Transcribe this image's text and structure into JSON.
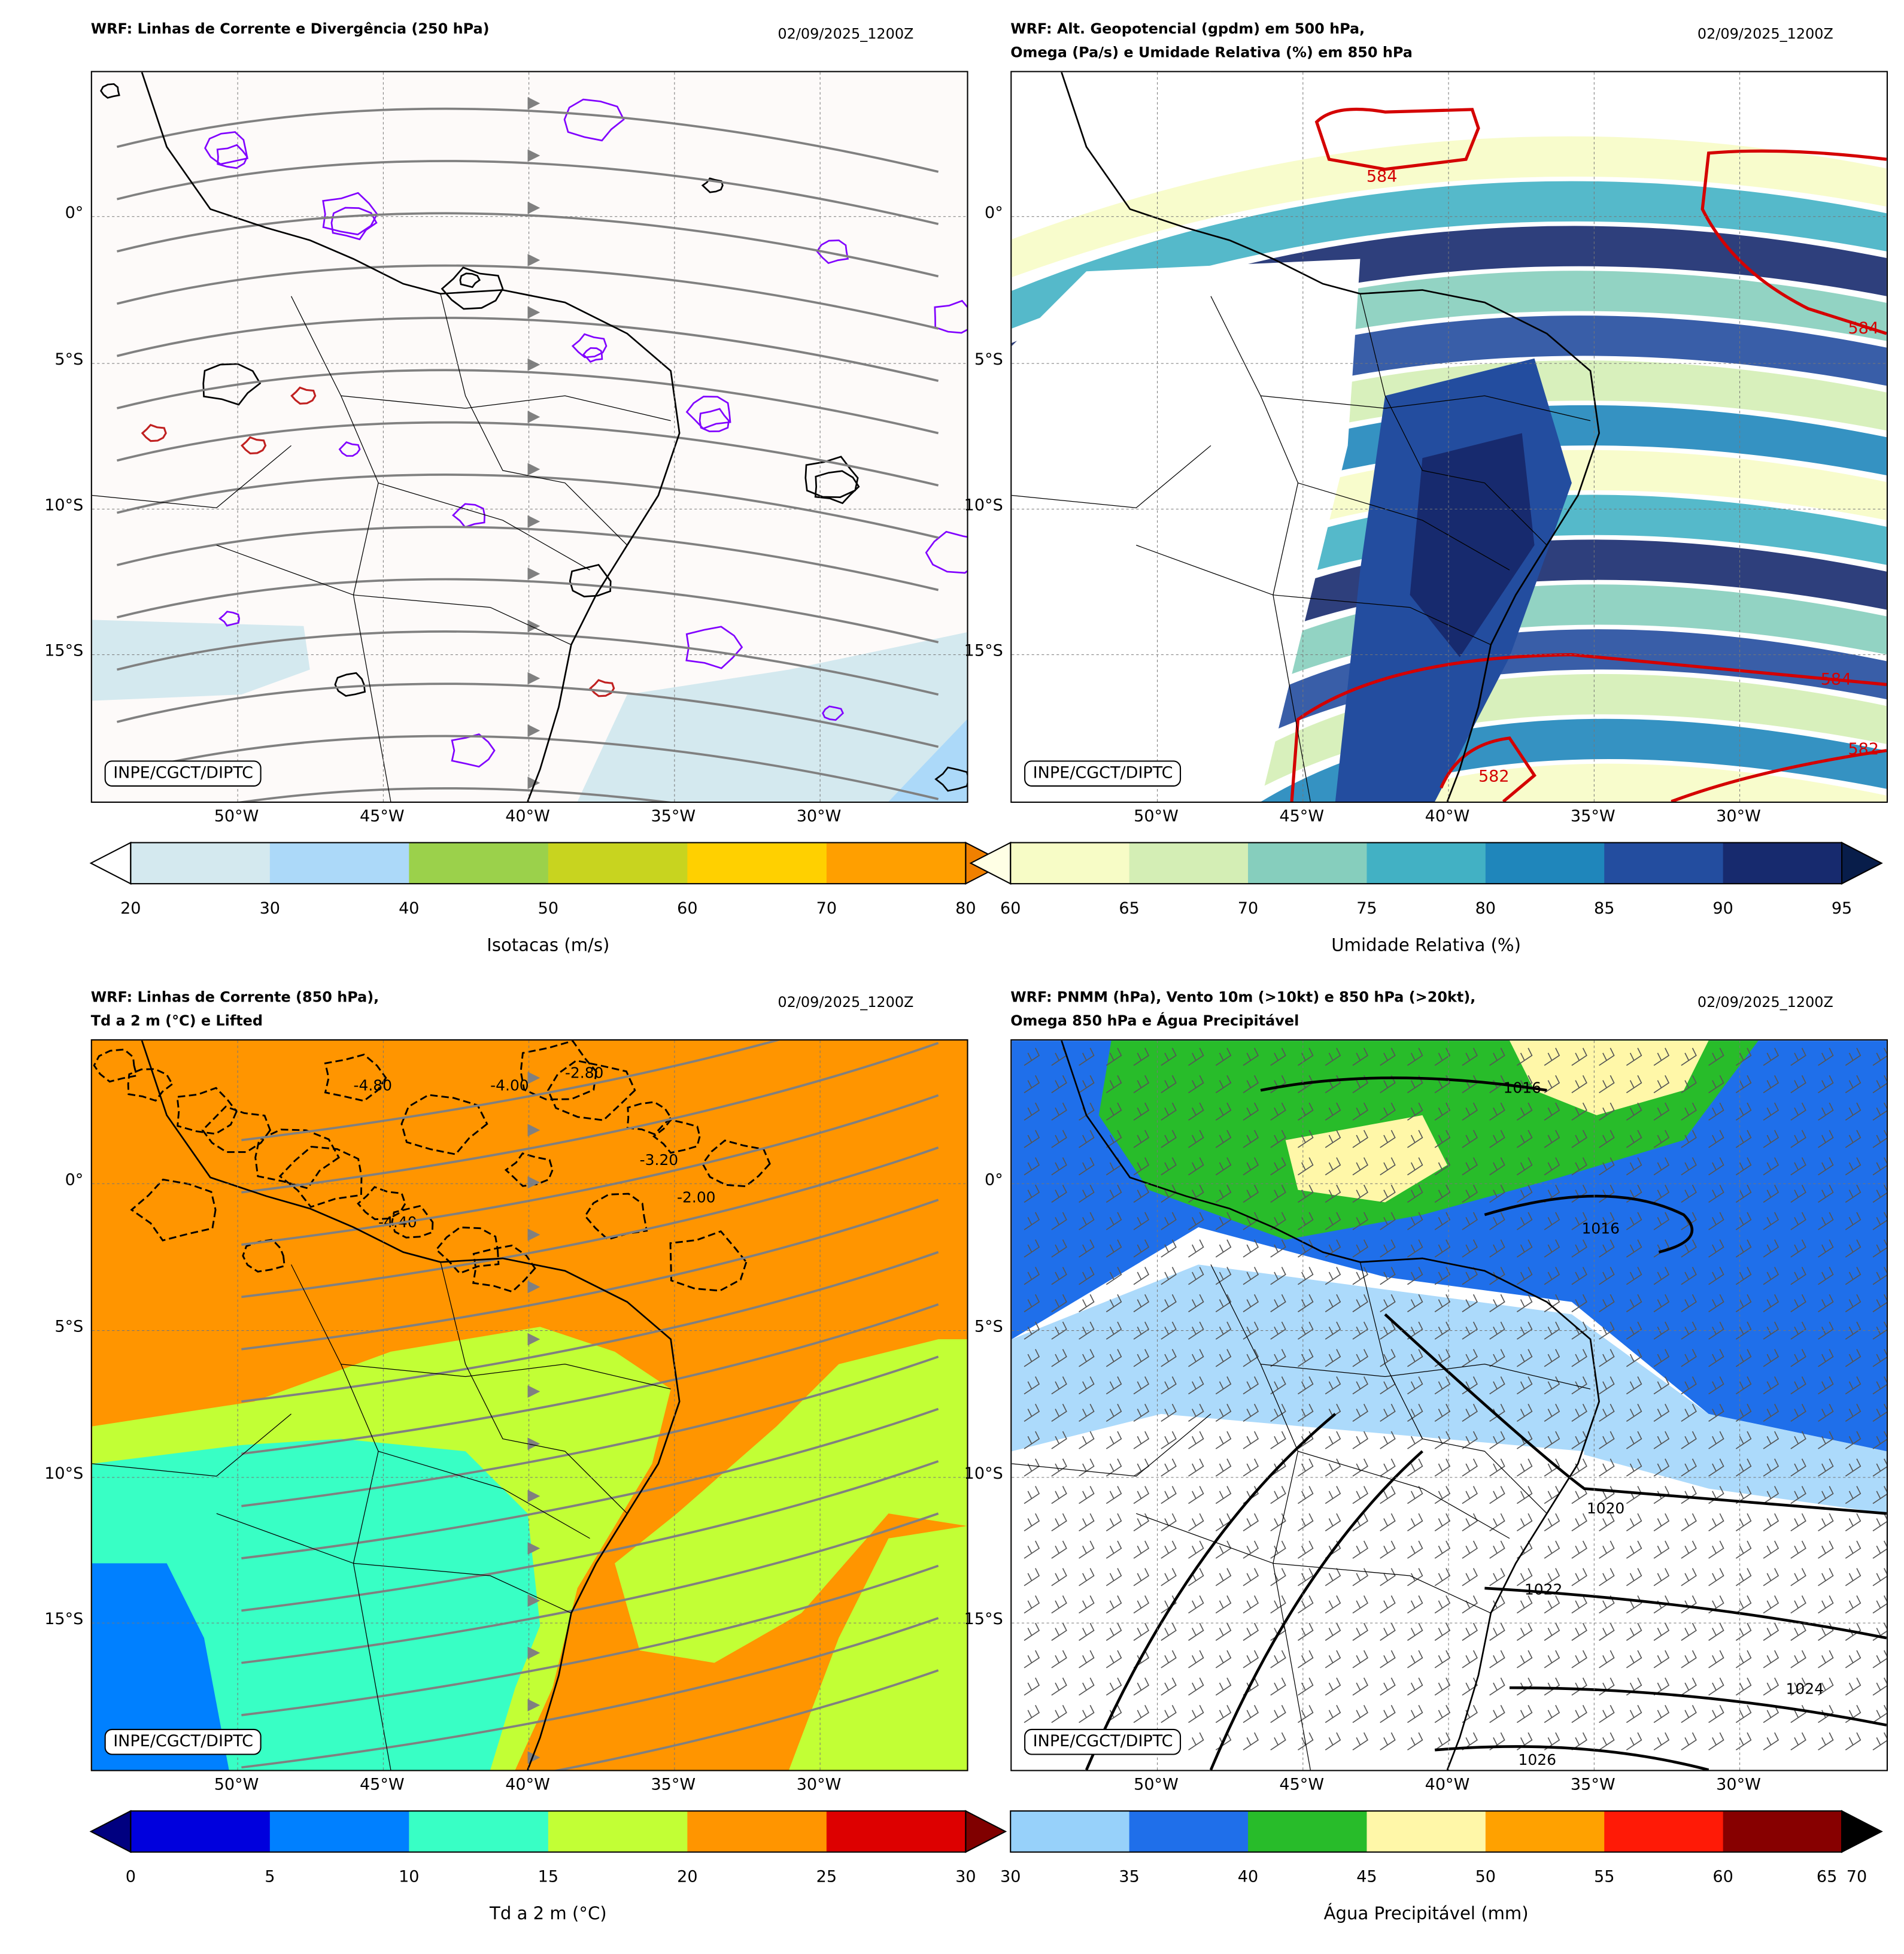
{
  "panels": [
    {
      "title_line1": "WRF: Linhas de Corrente e Divergência (250 hPa)",
      "title_line2": "",
      "date": "02/09/2025_1200Z",
      "badge": "INPE/CGCT/DIPTC",
      "colorbar": {
        "label": "Isotacas (m/s)",
        "ticks": [
          "20",
          "30",
          "40",
          "50",
          "60",
          "70",
          "80"
        ],
        "colors": [
          "#d4e9ef",
          "#acd9f9",
          "#9bd14b",
          "#c8d41f",
          "#ffd000",
          "#ff9f00"
        ],
        "extend_min": "#ffffff",
        "extend_max": "#f08000"
      }
    },
    {
      "title_line1": "WRF: Alt. Geopotencial (gpdm) em 500 hPa,",
      "title_line2": "Omega (Pa/s) e Umidade Relativa (%) em 850 hPa",
      "date": "02/09/2025_1200Z",
      "badge": "INPE/CGCT/DIPTC",
      "colorbar": {
        "label": "Umidade Relativa (%)",
        "ticks": [
          "60",
          "65",
          "70",
          "75",
          "80",
          "85",
          "90",
          "95"
        ],
        "colors": [
          "#f7fcc6",
          "#d4eeb5",
          "#86cebd",
          "#42b1c4",
          "#1f86bb",
          "#234d9f",
          "#172a6e"
        ],
        "extend_min": "#ffffe5",
        "extend_max": "#081d4a"
      },
      "contour_labels": [
        "584",
        "584",
        "584",
        "582",
        "582"
      ]
    },
    {
      "title_line1": "WRF: Linhas de Corrente (850 hPa),",
      "title_line2": "Td a 2 m (°C) e Lifted",
      "date": "02/09/2025_1200Z",
      "badge": "INPE/CGCT/DIPTC",
      "colorbar": {
        "label": "Td a 2 m (°C)",
        "ticks": [
          "0",
          "5",
          "10",
          "15",
          "20",
          "25",
          "30"
        ],
        "colors": [
          "#0000dd",
          "#0080ff",
          "#38ffc5",
          "#c2ff35",
          "#ff9500",
          "#dd0000"
        ],
        "extend_min": "#000080",
        "extend_max": "#800000"
      },
      "contour_labels": [
        "-4.80",
        "-4.00",
        "-2.80",
        "-3.20",
        "-4.40",
        "-2.00"
      ]
    },
    {
      "title_line1": "WRF: PNMM (hPa), Vento 10m (>10kt) e 850 hPa (>20kt),",
      "title_line2": "Omega 850 hPa e Água Precipitável",
      "date": "02/09/2025_1200Z",
      "badge": "INPE/CGCT/DIPTC",
      "colorbar": {
        "label": "Água Precipitável (mm)",
        "ticks": [
          "30",
          "35",
          "40",
          "45",
          "50",
          "55",
          "60",
          "70"
        ],
        "tick_overlap": "65",
        "colors": [
          "#97d1fa",
          "#1f6fea",
          "#28bc2a",
          "#fff7a8",
          "#ffa100",
          "#ff1a06",
          "#870000"
        ],
        "extend_max": "#000000"
      },
      "contour_labels": [
        "1016",
        "1016",
        "1020",
        "1022",
        "1024",
        "1026"
      ]
    }
  ],
  "axes": {
    "lat": [
      "0°",
      "5°S",
      "10°S",
      "15°S"
    ],
    "lon": [
      "50°W",
      "45°W",
      "40°W",
      "35°W",
      "30°W"
    ]
  }
}
